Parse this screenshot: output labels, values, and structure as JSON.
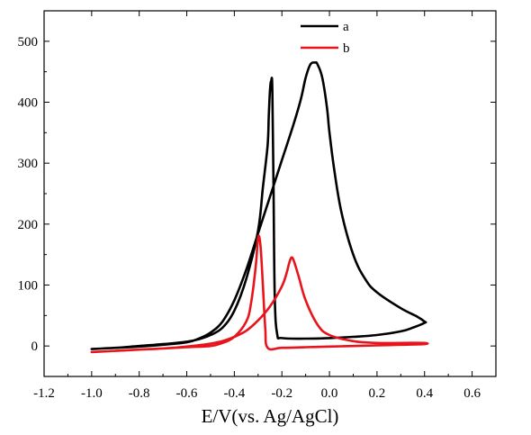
{
  "chart_data": {
    "type": "line",
    "title": "",
    "xlabel": "E/V(vs. Ag/AgCl)",
    "ylabel": "",
    "xlim": [
      -1.2,
      0.7
    ],
    "ylim": [
      -50,
      550
    ],
    "x_ticks": [
      -1.2,
      -1.0,
      -0.8,
      -0.6,
      -0.4,
      -0.2,
      0.0,
      0.2,
      0.4,
      0.6
    ],
    "x_tick_labels": [
      "-1.2",
      "-1.0",
      "-0.8",
      "-0.6",
      "-0.4",
      "-0.2",
      "0.0",
      "0.2",
      "0.4",
      "0.6"
    ],
    "y_ticks": [
      0,
      100,
      200,
      300,
      400,
      500
    ],
    "y_tick_labels": [
      "0",
      "100",
      "200",
      "300",
      "400",
      "500"
    ],
    "grid": false,
    "legend": "top-center",
    "series": [
      {
        "name": "a",
        "color": "#000000",
        "x": [
          -1.0,
          -0.9,
          -0.8,
          -0.7,
          -0.6,
          -0.55,
          -0.5,
          -0.45,
          -0.4,
          -0.35,
          -0.3,
          -0.25,
          -0.2,
          -0.15,
          -0.12,
          -0.1,
          -0.08,
          -0.06,
          -0.05,
          -0.03,
          -0.01,
          0.0,
          0.02,
          0.05,
          0.1,
          0.15,
          0.2,
          0.3,
          0.37,
          0.4,
          0.4,
          0.35,
          0.3,
          0.2,
          0.1,
          0.0,
          -0.1,
          -0.2,
          -0.22,
          -0.23,
          -0.235,
          -0.24,
          -0.245,
          -0.25,
          -0.255,
          -0.26,
          -0.28,
          -0.3,
          -0.35,
          -0.4,
          -0.45,
          -0.5,
          -0.55,
          -0.6,
          -0.7,
          -0.8,
          -0.9,
          -1.0
        ],
        "y": [
          -5,
          -3,
          -1,
          2,
          6,
          12,
          22,
          40,
          75,
          125,
          185,
          245,
          305,
          365,
          405,
          440,
          462,
          465,
          462,
          440,
          390,
          350,
          290,
          220,
          150,
          110,
          88,
          62,
          48,
          40,
          38,
          30,
          24,
          18,
          15,
          13,
          12,
          13,
          20,
          80,
          250,
          420,
          435,
          420,
          380,
          330,
          260,
          190,
          110,
          58,
          30,
          18,
          11,
          7,
          3,
          0,
          -3,
          -5
        ]
      },
      {
        "name": "b",
        "color": "#e8141c",
        "x": [
          -1.0,
          -0.9,
          -0.8,
          -0.7,
          -0.6,
          -0.5,
          -0.45,
          -0.4,
          -0.35,
          -0.3,
          -0.25,
          -0.2,
          -0.18,
          -0.17,
          -0.16,
          -0.15,
          -0.13,
          -0.1,
          -0.05,
          0.0,
          0.1,
          0.2,
          0.3,
          0.4,
          0.4,
          0.3,
          0.2,
          0.1,
          0.0,
          -0.1,
          -0.2,
          -0.26,
          -0.27,
          -0.28,
          -0.29,
          -0.3,
          -0.31,
          -0.33,
          -0.35,
          -0.4,
          -0.45,
          -0.5,
          -0.6,
          -0.7,
          -0.8,
          -0.9,
          -1.0
        ],
        "y": [
          -10,
          -8,
          -6,
          -4,
          -1,
          4,
          8,
          15,
          25,
          42,
          65,
          98,
          120,
          135,
          145,
          140,
          115,
          75,
          35,
          18,
          8,
          5,
          5,
          5,
          3,
          2,
          1,
          0,
          -1,
          -2,
          -3,
          -3,
          30,
          100,
          165,
          178,
          130,
          70,
          40,
          15,
          5,
          0,
          -2,
          -4,
          -6,
          -8,
          -10
        ]
      }
    ]
  }
}
